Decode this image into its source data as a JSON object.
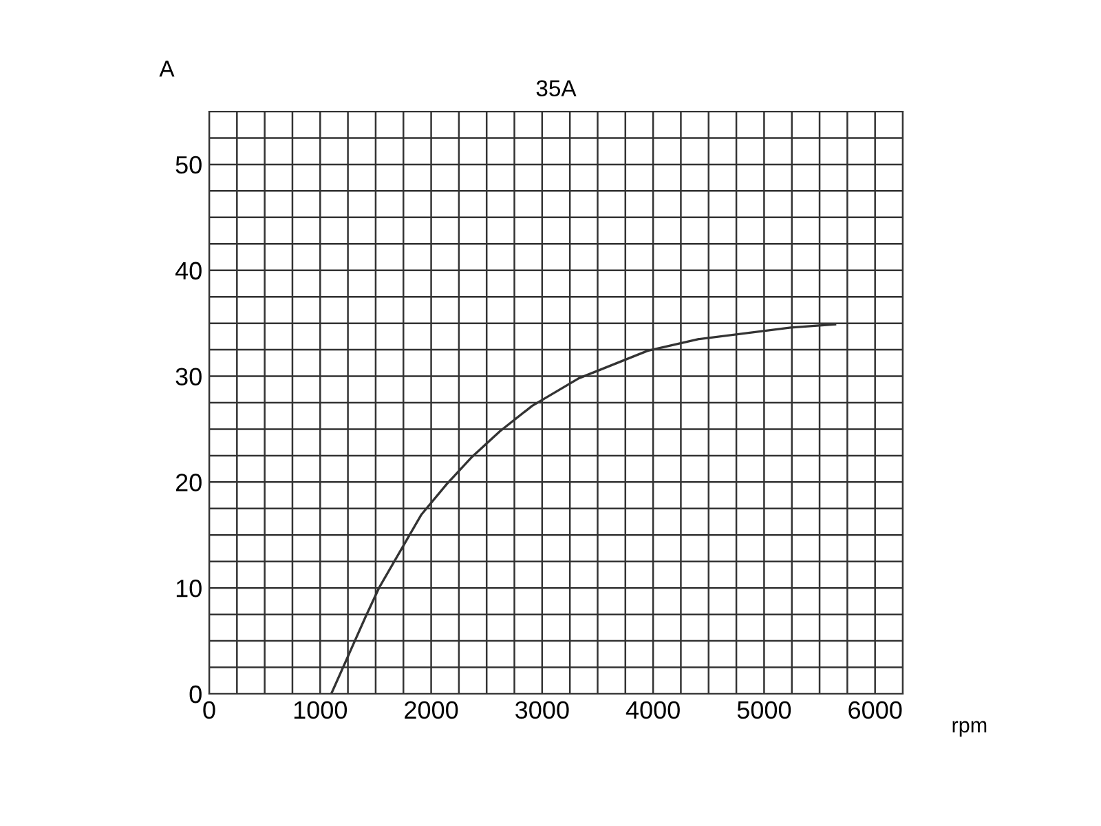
{
  "chart_data": {
    "type": "line",
    "title": "35A",
    "xlabel": "rpm",
    "ylabel": "A",
    "x": [
      1100,
      1410,
      1530,
      1910,
      2140,
      2370,
      2620,
      2910,
      3330,
      3950,
      4410,
      5240,
      5640
    ],
    "series": [
      {
        "color": "#333333",
        "values": [
          0,
          7.3,
          10,
          16.9,
          19.8,
          22.4,
          24.8,
          27.2,
          29.8,
          32.4,
          33.5,
          34.6,
          34.9
        ]
      }
    ],
    "xlim": [
      0,
      6250
    ],
    "ylim": [
      0,
      55
    ],
    "xticks": [
      0,
      {
        "value": 250,
        "label": null
      },
      {
        "value": 500,
        "label": null
      },
      {
        "value": 750,
        "label": null
      },
      1000,
      {
        "value": 1250,
        "label": null
      },
      {
        "value": 1500,
        "label": null
      },
      {
        "value": 1750,
        "label": null
      },
      2000,
      {
        "value": 2250,
        "label": null
      },
      {
        "value": 2500,
        "label": null
      },
      {
        "value": 2750,
        "label": null
      },
      3000,
      {
        "value": 3250,
        "label": null
      },
      {
        "value": 3500,
        "label": null
      },
      {
        "value": 3750,
        "label": null
      },
      4000,
      {
        "value": 4250,
        "label": null
      },
      {
        "value": 4500,
        "label": null
      },
      {
        "value": 4750,
        "label": null
      },
      5000,
      {
        "value": 5250,
        "label": null
      },
      {
        "value": 5500,
        "label": null
      },
      {
        "value": 5750,
        "label": null
      },
      6000,
      {
        "value": 6250,
        "label": null
      }
    ],
    "yticks": [
      0,
      {
        "value": 2.5,
        "label": null
      },
      {
        "value": 5,
        "label": null
      },
      {
        "value": 7.5,
        "label": null
      },
      10,
      {
        "value": 12.5,
        "label": null
      },
      {
        "value": 15,
        "label": null
      },
      {
        "value": 17.5,
        "label": null
      },
      20,
      {
        "value": 22.5,
        "label": null
      },
      {
        "value": 25,
        "label": null
      },
      {
        "value": 27.5,
        "label": null
      },
      30,
      {
        "value": 32.5,
        "label": null
      },
      {
        "value": 35,
        "label": null
      },
      {
        "value": 37.5,
        "label": null
      },
      40,
      {
        "value": 42.5,
        "label": null
      },
      {
        "value": 45,
        "label": null
      },
      {
        "value": 47.5,
        "label": null
      },
      50,
      {
        "value": 52.5,
        "label": null
      },
      {
        "value": 55,
        "label": null
      }
    ],
    "grid": true,
    "marker": "none",
    "line_style": "solid",
    "legend": false
  }
}
